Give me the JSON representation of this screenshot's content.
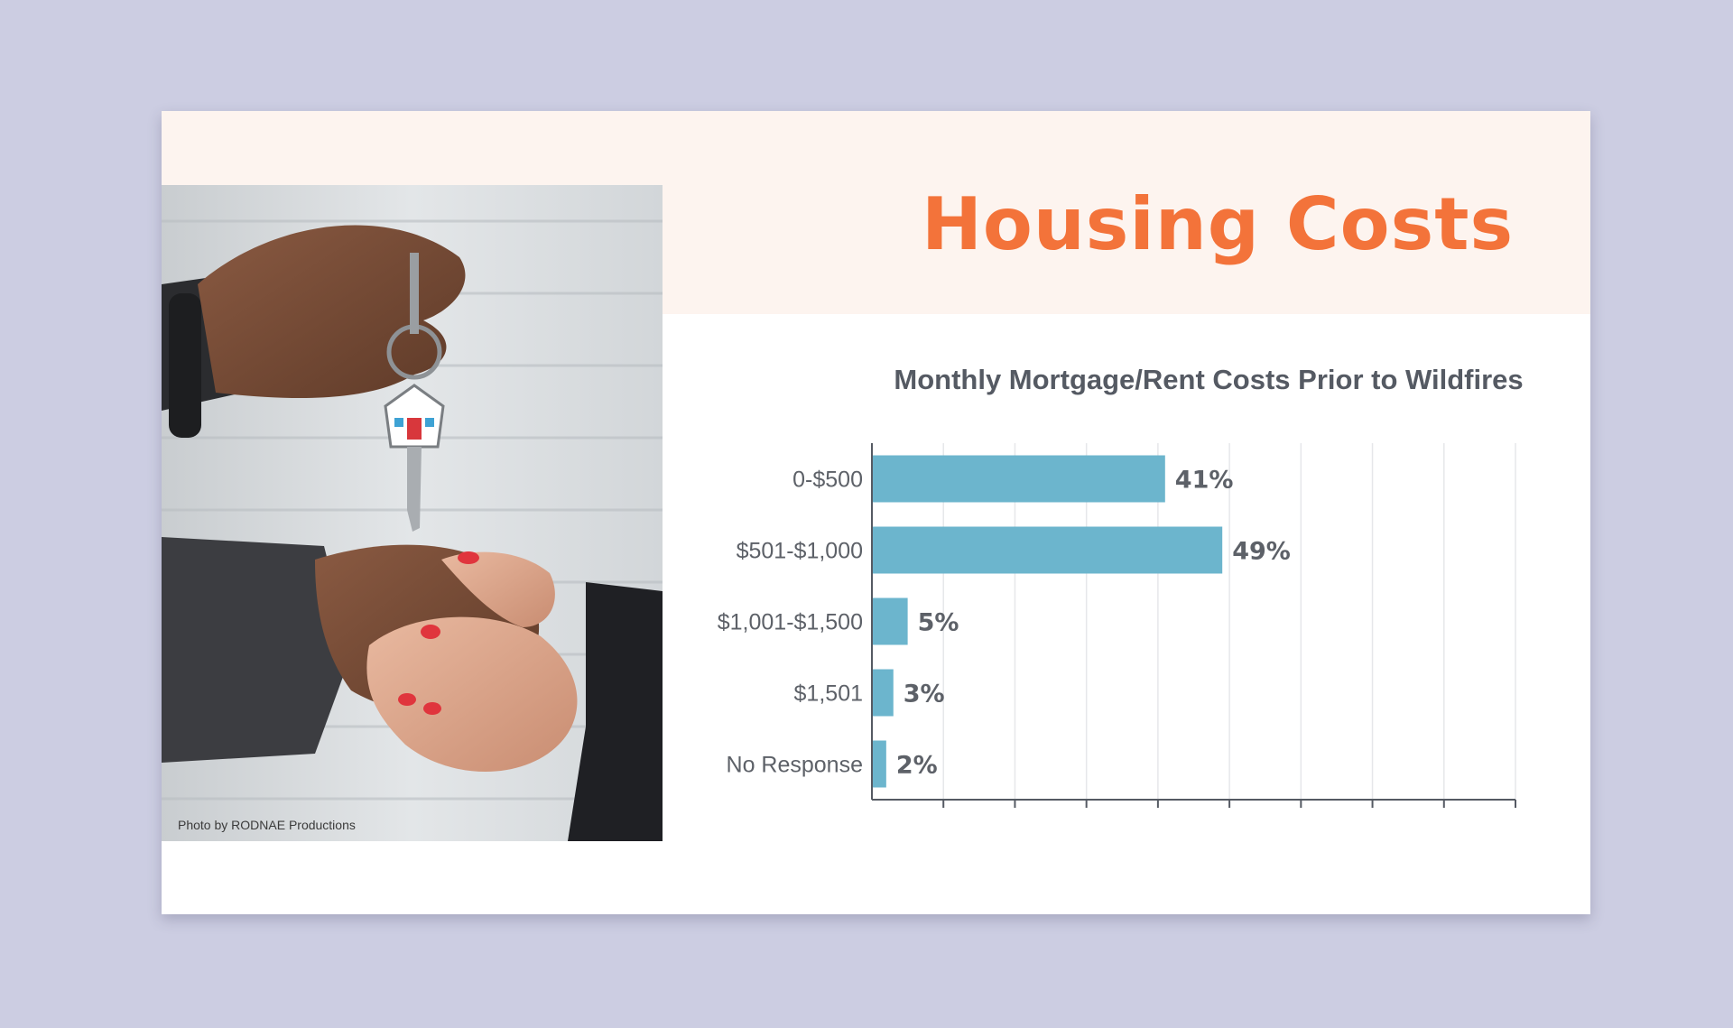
{
  "slide": {
    "title": "Housing Costs",
    "photo_credit": "Photo by RODNAE Productions",
    "colors": {
      "title": "#f3733a",
      "band": "#fdf4ef",
      "bar": "#6cb5cd",
      "background": "#cccde2"
    }
  },
  "chart_data": {
    "type": "bar",
    "orientation": "horizontal",
    "title": "Monthly Mortgage/Rent Costs Prior to Wildfires",
    "categories": [
      "0-$500",
      "$501-$1,000",
      "$1,001-$1,500",
      "$1,501",
      "No Response"
    ],
    "values": [
      41,
      49,
      5,
      3,
      2
    ],
    "value_labels": [
      "41%",
      "49%",
      "5%",
      "3%",
      "2%"
    ],
    "unit": "%",
    "xlim": [
      0,
      90
    ],
    "grid": true,
    "legend": "none",
    "bar_color": "#6cb5cd"
  }
}
